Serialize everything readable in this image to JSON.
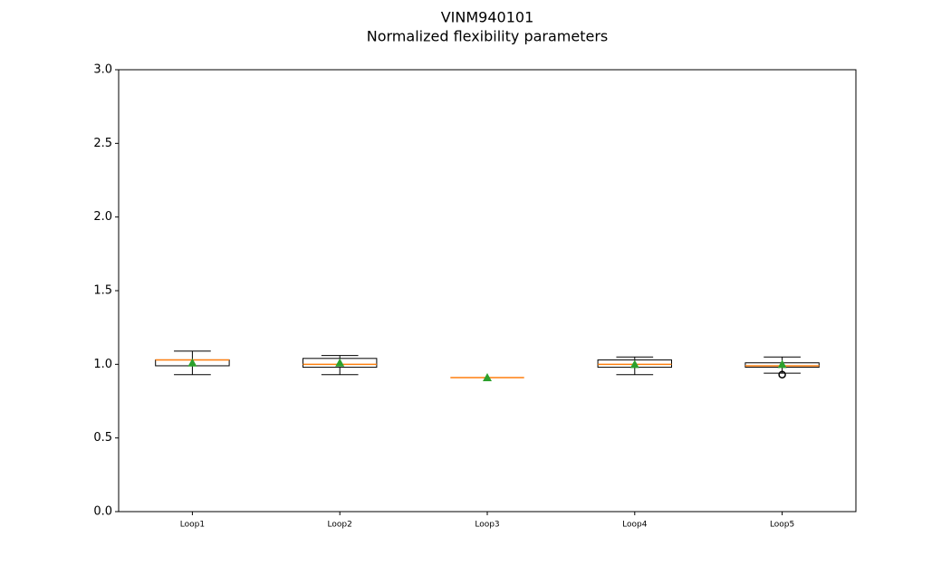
{
  "chart_data": {
    "type": "box",
    "title": "VINM940101",
    "subtitle": "Normalized flexibility parameters",
    "categories": [
      "Loop1",
      "Loop2",
      "Loop3",
      "Loop4",
      "Loop5"
    ],
    "boxes": [
      {
        "whislo": 0.93,
        "q1": 0.99,
        "med": 1.03,
        "q3": 1.03,
        "whishi": 1.09,
        "mean": 1.01,
        "fliers": []
      },
      {
        "whislo": 0.93,
        "q1": 0.98,
        "med": 1.0,
        "q3": 1.04,
        "whishi": 1.06,
        "mean": 1.01,
        "fliers": []
      },
      {
        "whislo": 0.91,
        "q1": 0.91,
        "med": 0.91,
        "q3": 0.91,
        "whishi": 0.91,
        "mean": 0.91,
        "fliers": []
      },
      {
        "whislo": 0.93,
        "q1": 0.98,
        "med": 1.0,
        "q3": 1.03,
        "whishi": 1.05,
        "mean": 1.0,
        "fliers": []
      },
      {
        "whislo": 0.94,
        "q1": 0.98,
        "med": 0.99,
        "q3": 1.01,
        "whishi": 1.05,
        "mean": 1.0,
        "fliers": [
          0.93
        ]
      }
    ],
    "median_color": "#ff7f0e",
    "mean_color": "#2ca02c",
    "ylim": [
      0,
      3
    ],
    "yticks": [
      {
        "value": 0,
        "label": "0.0"
      },
      0.5,
      {
        "value": 1,
        "label": "1.0"
      },
      1.5,
      {
        "value": 2,
        "label": "2.0"
      },
      2.5,
      {
        "value": 3,
        "label": "3.0"
      }
    ],
    "grid": false
  }
}
